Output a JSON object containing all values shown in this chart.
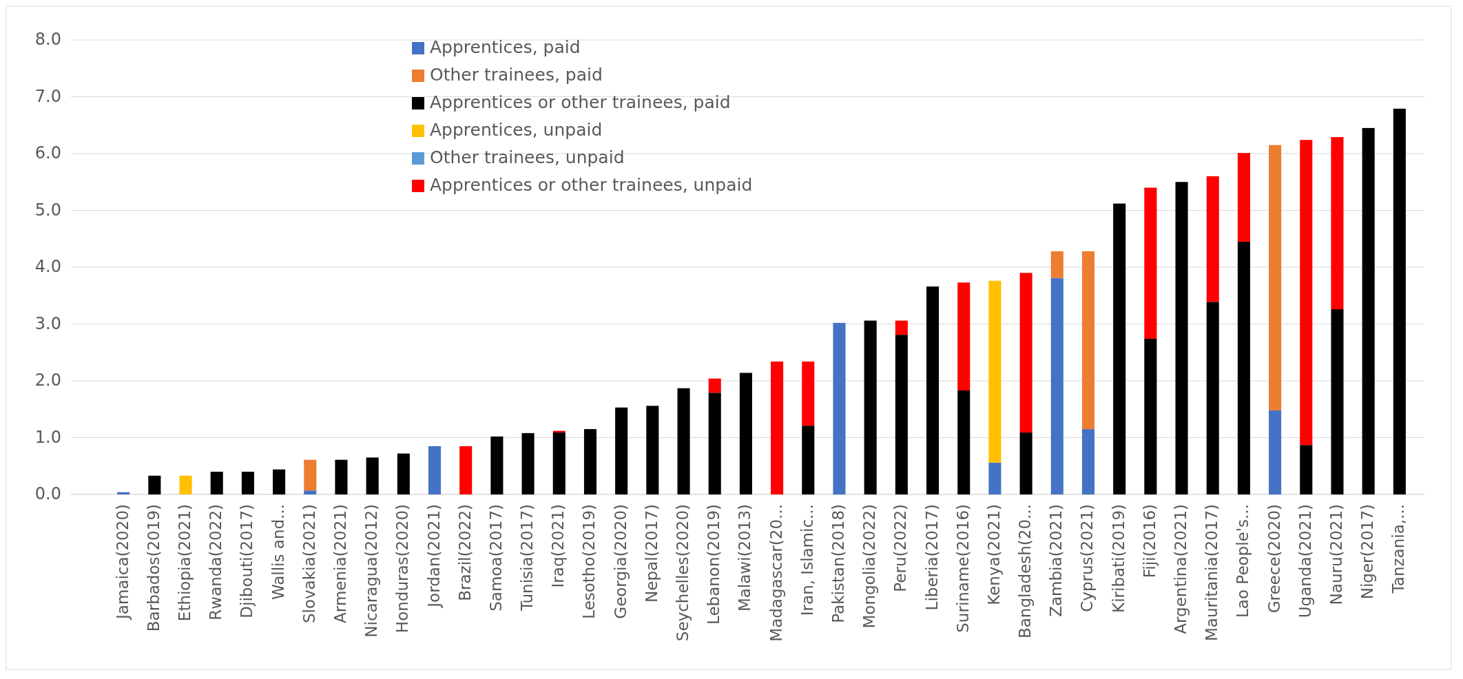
{
  "chart_data": {
    "type": "bar",
    "stacked": true,
    "grid": "y",
    "legend": "top",
    "categories": [
      "Jamaica(2020)",
      "Barbados(2019)",
      "Ethiopia(2021)",
      "Rwanda(2022)",
      "Djibouti(2017)",
      "Wallis and...",
      "Slovakia(2021)",
      "Armenia(2021)",
      "Nicaragua(2012)",
      "Honduras(2020)",
      "Jordan(2021)",
      "Brazil(2022)",
      "Samoa(2017)",
      "Tunisia(2017)",
      "Iraq(2021)",
      "Lesotho(2019)",
      "Georgia(2020)",
      "Nepal(2017)",
      "Seychelles(2020)",
      "Lebanon(2019)",
      "Malawi(2013)",
      "Madagascar(20...",
      "Iran, Islamic...",
      "Pakistan(2018)",
      "Mongolia(2022)",
      "Peru(2022)",
      "Liberia(2017)",
      "Suriname(2016)",
      "Kenya(2021)",
      "Bangladesh(20...",
      "Zambia(2021)",
      "Cyprus(2021)",
      "Kiribati(2019)",
      "Fiji(2016)",
      "Argentina(2021)",
      "Mauritania(2017)",
      "Lao People's...",
      "Greece(2020)",
      "Uganda(2021)",
      "Nauru(2021)",
      "Niger(2017)",
      "Tanzania,..."
    ],
    "ylim": [
      0,
      8
    ],
    "yticks": [
      {
        "value": 0,
        "label": "0.0"
      },
      {
        "value": 1,
        "label": "1.0"
      },
      {
        "value": 2,
        "label": "2.0"
      },
      {
        "value": 3,
        "label": "3.0"
      },
      {
        "value": 4,
        "label": "4.0"
      },
      {
        "value": 5,
        "label": "5.0"
      },
      {
        "value": 6,
        "label": "6.0"
      },
      {
        "value": 7,
        "label": "7.0"
      },
      {
        "value": 8,
        "label": "8.0"
      }
    ],
    "series": [
      {
        "name": "Apprentices, paid",
        "color": "#4472c4",
        "values": [
          0.04,
          null,
          null,
          null,
          null,
          null,
          0.07,
          null,
          null,
          null,
          0.85,
          null,
          null,
          null,
          null,
          null,
          null,
          null,
          null,
          null,
          null,
          null,
          null,
          3.02,
          null,
          null,
          null,
          null,
          0.56,
          null,
          3.81,
          1.15,
          null,
          null,
          null,
          null,
          null,
          1.48,
          null,
          null,
          null,
          null
        ]
      },
      {
        "name": "Other trainees, paid",
        "color": "#ed7d31",
        "values": [
          null,
          null,
          null,
          null,
          null,
          null,
          0.54,
          null,
          null,
          null,
          null,
          null,
          null,
          null,
          null,
          null,
          null,
          null,
          null,
          null,
          null,
          null,
          null,
          null,
          null,
          null,
          null,
          null,
          null,
          null,
          0.47,
          3.13,
          null,
          null,
          null,
          null,
          null,
          4.67,
          null,
          null,
          null,
          null
        ]
      },
      {
        "name": "Apprentices or other trainees, paid",
        "color": "#000000",
        "values": [
          null,
          0.33,
          null,
          0.4,
          0.4,
          0.44,
          null,
          0.61,
          0.65,
          0.72,
          null,
          null,
          1.02,
          1.08,
          1.09,
          1.15,
          1.53,
          1.56,
          1.87,
          1.79,
          2.14,
          null,
          1.21,
          null,
          3.06,
          2.81,
          3.66,
          1.83,
          null,
          1.09,
          null,
          null,
          5.12,
          2.74,
          5.5,
          3.39,
          4.45,
          null,
          0.87,
          3.26,
          6.45,
          6.79
        ]
      },
      {
        "name": "Apprentices, unpaid",
        "color": "#ffc000",
        "values": [
          null,
          null,
          0.33,
          null,
          null,
          null,
          null,
          null,
          null,
          null,
          null,
          null,
          null,
          null,
          null,
          null,
          null,
          null,
          null,
          null,
          null,
          null,
          null,
          null,
          null,
          null,
          null,
          null,
          3.2,
          null,
          null,
          null,
          null,
          null,
          null,
          null,
          null,
          null,
          null,
          null,
          null,
          null
        ]
      },
      {
        "name": "Other trainees, unpaid",
        "color": "#5b9bd5",
        "values": [
          null,
          null,
          null,
          null,
          null,
          null,
          null,
          null,
          null,
          null,
          null,
          null,
          null,
          null,
          null,
          null,
          null,
          null,
          null,
          null,
          null,
          null,
          null,
          null,
          null,
          null,
          null,
          null,
          null,
          null,
          null,
          null,
          null,
          null,
          null,
          null,
          null,
          null,
          null,
          null,
          null,
          null
        ]
      },
      {
        "name": "Apprentices or other trainees, unpaid",
        "color": "#ff0000",
        "values": [
          null,
          null,
          null,
          null,
          null,
          null,
          null,
          null,
          null,
          null,
          null,
          0.85,
          null,
          null,
          0.03,
          null,
          null,
          null,
          null,
          0.25,
          null,
          2.34,
          1.13,
          null,
          null,
          0.25,
          null,
          1.9,
          null,
          2.81,
          null,
          null,
          null,
          2.66,
          null,
          2.21,
          1.56,
          null,
          5.37,
          3.03,
          null,
          null
        ]
      }
    ]
  }
}
